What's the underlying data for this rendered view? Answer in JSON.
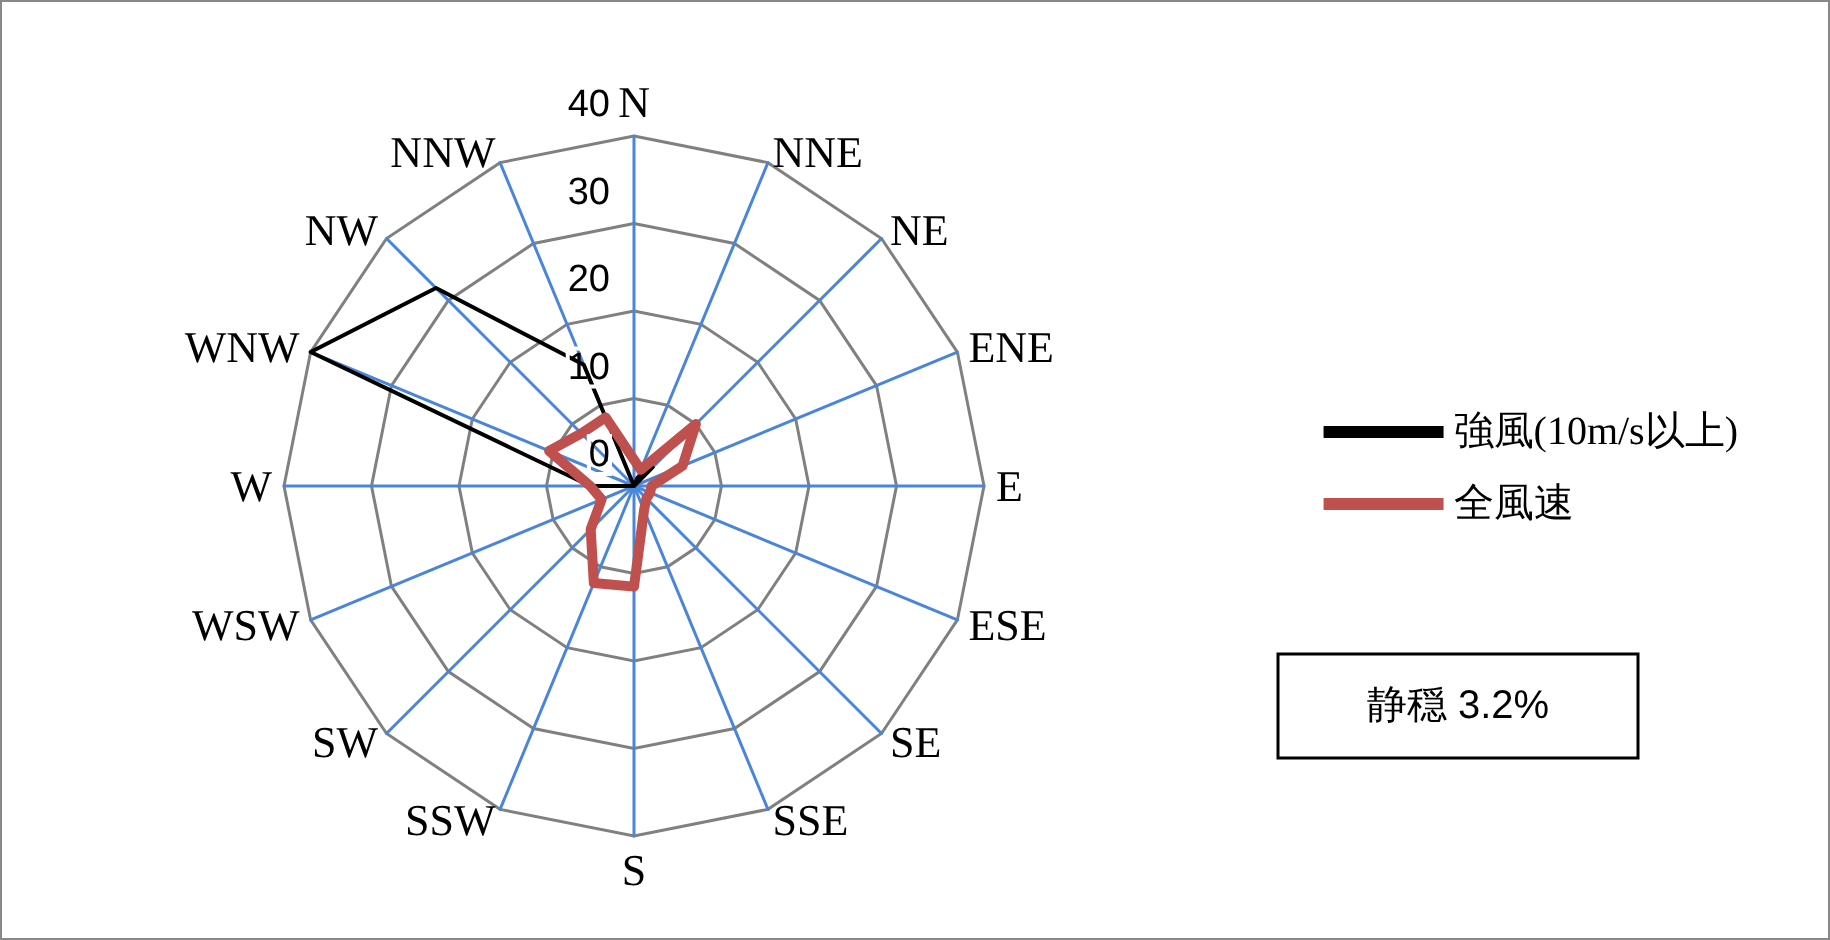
{
  "chart_data": {
    "type": "radar",
    "categories": [
      "N",
      "NNE",
      "NE",
      "ENE",
      "E",
      "ESE",
      "SE",
      "SSE",
      "S",
      "SSW",
      "SW",
      "WSW",
      "W",
      "WNW",
      "NW",
      "NNW"
    ],
    "series": [
      {
        "name": "強風(10m/s以上)",
        "color": "#000000",
        "values": [
          0,
          1,
          3,
          0,
          0,
          0,
          0,
          0,
          0,
          0,
          0,
          0,
          5,
          40,
          32,
          15
        ]
      },
      {
        "name": "全風速",
        "color": "#c0504d",
        "values": [
          3,
          2,
          10,
          6,
          2,
          2,
          2,
          3,
          11.5,
          12,
          7,
          4,
          5,
          10.5,
          8.5,
          8.5
        ]
      }
    ],
    "ylim": [
      0,
      40
    ],
    "yticks": [
      0,
      10,
      20,
      30,
      40
    ],
    "grid": true,
    "legend": "right",
    "marker": "none",
    "annotations": [
      "静穏 3.2%"
    ]
  }
}
